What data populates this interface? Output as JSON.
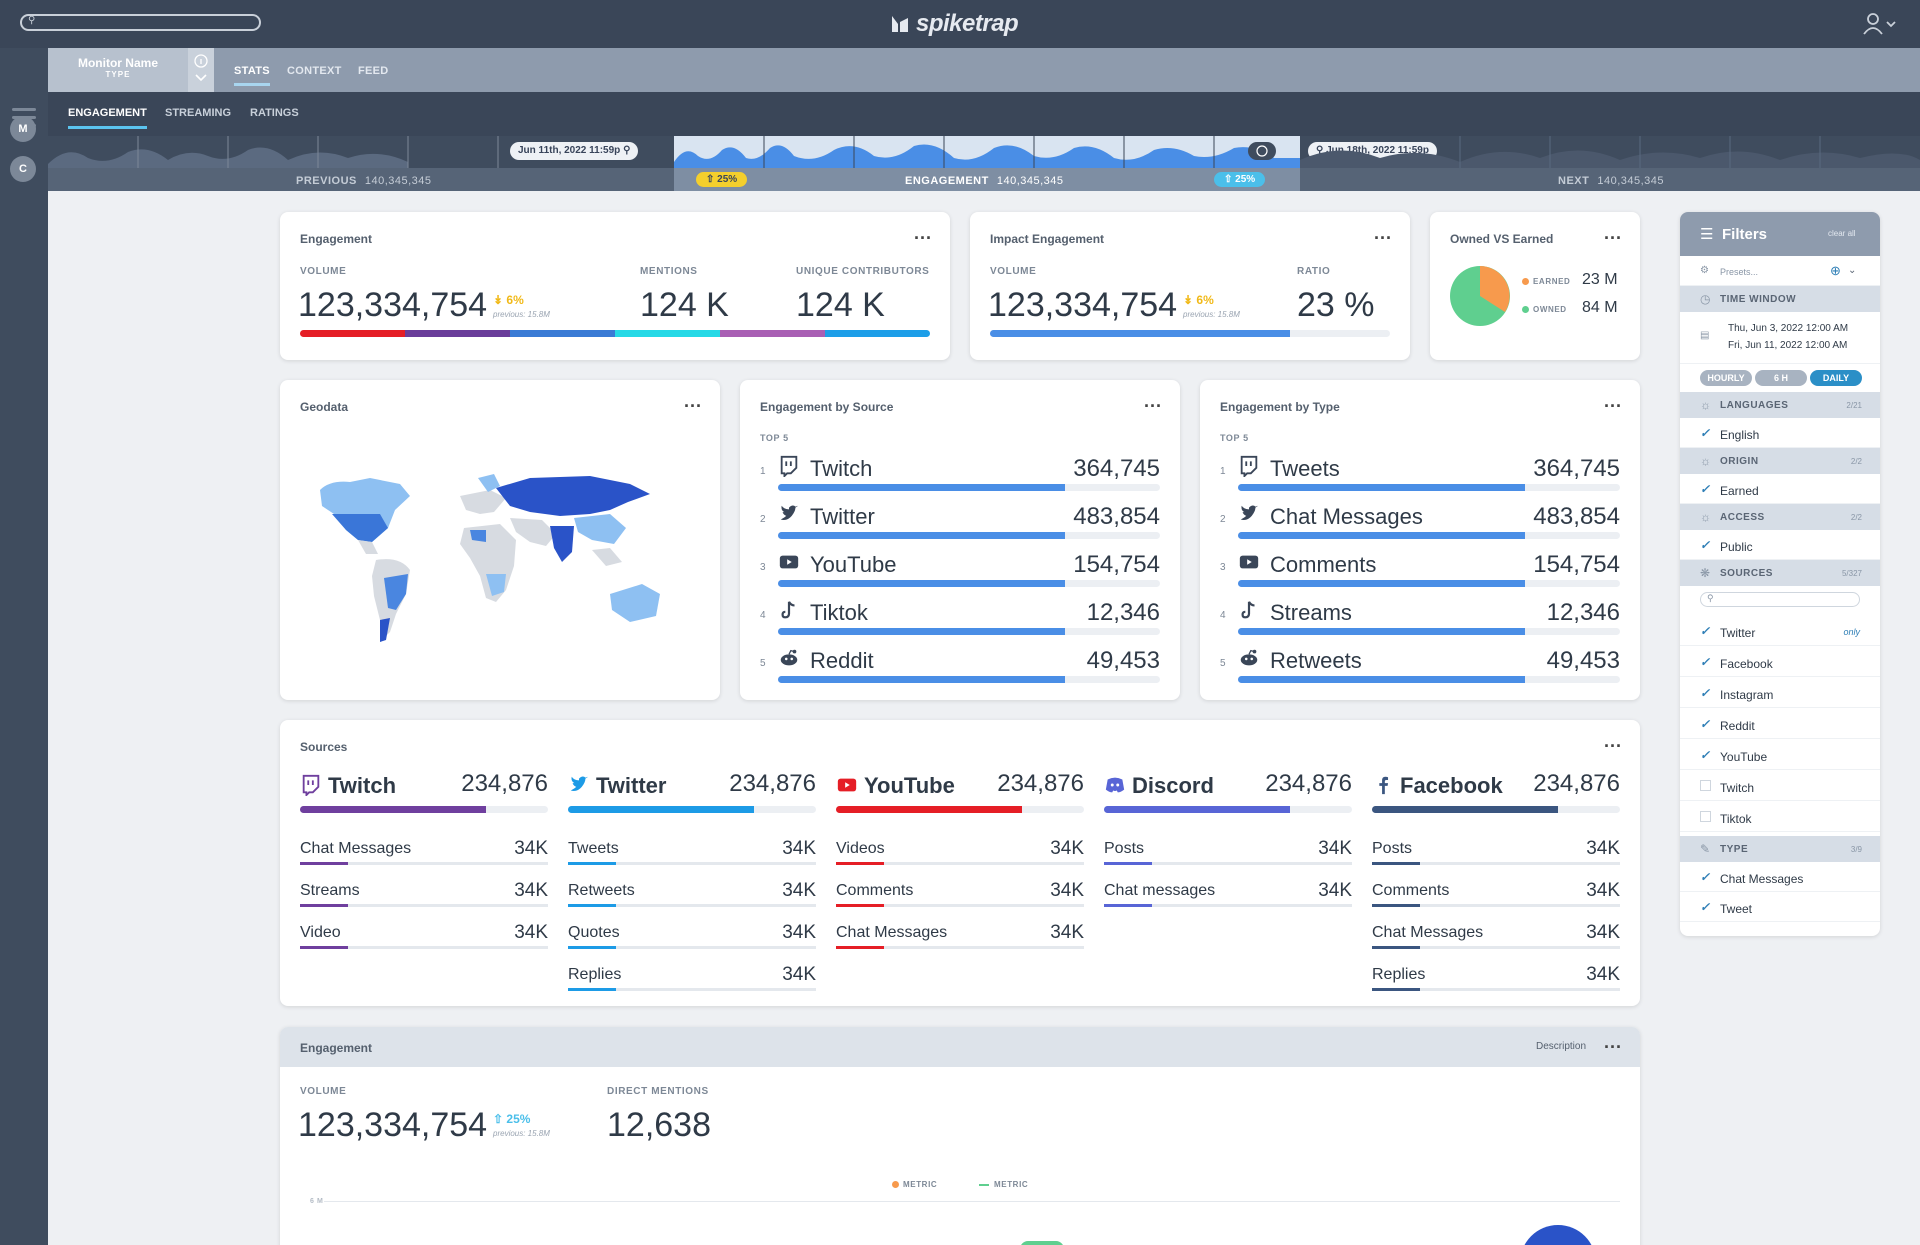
{
  "app": {
    "brand": "spiketrap",
    "search_placeholder": ""
  },
  "monitor": {
    "name": "Monitor Name",
    "type": "TYPE"
  },
  "top_tabs": [
    "STATS",
    "CONTEXT",
    "FEED"
  ],
  "sub_tabs": [
    "ENGAGEMENT",
    "STREAMING",
    "RATINGS"
  ],
  "left_rail": {
    "circles": [
      "M",
      "C"
    ]
  },
  "timeline": {
    "start_date": "Jun 11th, 2022 11:59p",
    "end_date": "Jun 18th, 2022 11:59p",
    "previous_label": "PREVIOUS",
    "previous_value": "140,345,345",
    "engagement_label": "ENGAGEMENT",
    "engagement_value": "140,345,345",
    "next_label": "NEXT",
    "next_value": "140,345,345",
    "badge_left": "25%",
    "badge_right": "25%"
  },
  "engagement_card": {
    "title": "Engagement",
    "volume_label": "VOLUME",
    "volume": "123,334,754",
    "delta": "6%",
    "previous": "previous: 15.8M",
    "mentions_label": "MENTIONS",
    "mentions": "124 K",
    "contributors_label": "UNIQUE CONTRIBUTORS",
    "contributors": "124 K",
    "bar_colors": [
      "#e51e26",
      "#6a3d9a",
      "#3a7bd5",
      "#26d9e6",
      "#a95fb4",
      "#1c9ee8"
    ]
  },
  "impact_card": {
    "title": "Impact Engagement",
    "volume_label": "VOLUME",
    "volume": "123,334,754",
    "delta": "6%",
    "previous": "previous: 15.8M",
    "ratio_label": "RATIO",
    "ratio": "23 %",
    "bar_fill": 0.75
  },
  "owned_card": {
    "title": "Owned VS Earned",
    "earned_label": "EARNED",
    "earned_value": "23 M",
    "owned_label": "OWNED",
    "owned_value": "84 M",
    "earned_color": "#f79a4d",
    "owned_color": "#5fcf8f"
  },
  "geodata_card": {
    "title": "Geodata"
  },
  "by_source": {
    "title": "Engagement by Source",
    "sub": "TOP 5",
    "items": [
      {
        "rank": "1",
        "name": "Twitch",
        "value": "364,745",
        "icon": "twitch-icon"
      },
      {
        "rank": "2",
        "name": "Twitter",
        "value": "483,854",
        "icon": "twitter-icon"
      },
      {
        "rank": "3",
        "name": "YouTube",
        "value": "154,754",
        "icon": "youtube-icon"
      },
      {
        "rank": "4",
        "name": "Tiktok",
        "value": "12,346",
        "icon": "tiktok-icon"
      },
      {
        "rank": "5",
        "name": "Reddit",
        "value": "49,453",
        "icon": "reddit-icon"
      }
    ]
  },
  "by_type": {
    "title": "Engagement by Type",
    "sub": "TOP 5",
    "items": [
      {
        "rank": "1",
        "name": "Tweets",
        "value": "364,745",
        "icon": "twitch-icon"
      },
      {
        "rank": "2",
        "name": "Chat Messages",
        "value": "483,854",
        "icon": "twitter-icon"
      },
      {
        "rank": "3",
        "name": "Comments",
        "value": "154,754",
        "icon": "youtube-icon"
      },
      {
        "rank": "4",
        "name": "Streams",
        "value": "12,346",
        "icon": "tiktok-icon"
      },
      {
        "rank": "5",
        "name": "Retweets",
        "value": "49,453",
        "icon": "reddit-icon"
      }
    ]
  },
  "sources_card": {
    "title": "Sources",
    "columns": [
      {
        "name": "Twitch",
        "value": "234,876",
        "color": "#6f3f9e",
        "icon": "twitch-icon",
        "items": [
          {
            "name": "Chat Messages",
            "value": "34K"
          },
          {
            "name": "Streams",
            "value": "34K"
          },
          {
            "name": "Video",
            "value": "34K"
          }
        ]
      },
      {
        "name": "Twitter",
        "value": "234,876",
        "color": "#1d9be6",
        "icon": "twitter-icon",
        "items": [
          {
            "name": "Tweets",
            "value": "34K"
          },
          {
            "name": "Retweets",
            "value": "34K"
          },
          {
            "name": "Quotes",
            "value": "34K"
          },
          {
            "name": "Replies",
            "value": "34K"
          }
        ]
      },
      {
        "name": "YouTube",
        "value": "234,876",
        "color": "#e51e26",
        "icon": "youtube-icon",
        "items": [
          {
            "name": "Videos",
            "value": "34K"
          },
          {
            "name": "Comments",
            "value": "34K"
          },
          {
            "name": "Chat Messages",
            "value": "34K"
          }
        ]
      },
      {
        "name": "Discord",
        "value": "234,876",
        "color": "#5865d6",
        "icon": "discord-icon",
        "items": [
          {
            "name": "Posts",
            "value": "34K"
          },
          {
            "name": "Chat messages",
            "value": "34K"
          }
        ]
      },
      {
        "name": "Facebook",
        "value": "234,876",
        "color": "#3b5680",
        "icon": "facebook-icon",
        "items": [
          {
            "name": "Posts",
            "value": "34K"
          },
          {
            "name": "Comments",
            "value": "34K"
          },
          {
            "name": "Chat Messages",
            "value": "34K"
          },
          {
            "name": "Replies",
            "value": "34K"
          }
        ]
      }
    ]
  },
  "bottom_card": {
    "title": "Engagement",
    "description": "Description",
    "volume_label": "VOLUME",
    "volume": "123,334,754",
    "delta": "25%",
    "previous": "previous: 15.8M",
    "mentions_label": "DIRECT MENTIONS",
    "mentions": "12,638",
    "legend": [
      "METRIC",
      "METRIC"
    ],
    "y_tick": "6 M"
  },
  "filters": {
    "title": "Filters",
    "clear": "clear all",
    "presets": "Presets...",
    "time_window_label": "TIME WINDOW",
    "time_from": "Thu, Jun 3, 2022 12:00 AM",
    "time_to": "Fri, Jun 11, 2022 12:00 AM",
    "granularity": [
      "HOURLY",
      "6 H",
      "DAILY"
    ],
    "languages_label": "LANGUAGES",
    "languages_count": "2/21",
    "languages": [
      "English"
    ],
    "origin_label": "ORIGIN",
    "origin_count": "2/2",
    "origin": [
      "Earned"
    ],
    "access_label": "ACCESS",
    "access_count": "2/2",
    "access": [
      "Public"
    ],
    "sources_label": "SOURCES",
    "sources_count": "5/327",
    "sources": [
      {
        "name": "Twitter",
        "checked": true,
        "only": "only"
      },
      {
        "name": "Facebook",
        "checked": true
      },
      {
        "name": "Instagram",
        "checked": true
      },
      {
        "name": "Reddit",
        "checked": true
      },
      {
        "name": "YouTube",
        "checked": true
      },
      {
        "name": "Twitch",
        "checked": false
      },
      {
        "name": "Tiktok",
        "checked": false
      }
    ],
    "type_label": "TYPE",
    "type_count": "3/9",
    "types": [
      "Chat Messages",
      "Tweet"
    ]
  }
}
